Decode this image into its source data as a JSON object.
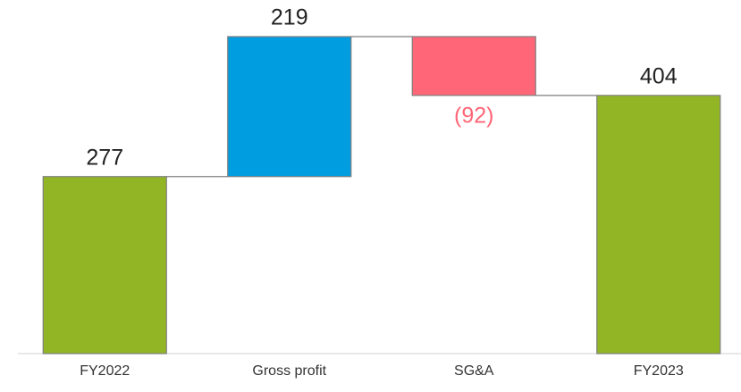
{
  "chart_data": {
    "type": "waterfall",
    "categories": [
      "FY2022",
      "Gross profit",
      "SG&A",
      "FY2023"
    ],
    "values": [
      277,
      219,
      -92,
      404
    ],
    "value_labels": [
      "277",
      "219",
      "(92)",
      "404"
    ],
    "colors": [
      "#92b526",
      "#009de0",
      "#ff6677",
      "#92b526"
    ],
    "negative_label_color": "#ff6677"
  }
}
